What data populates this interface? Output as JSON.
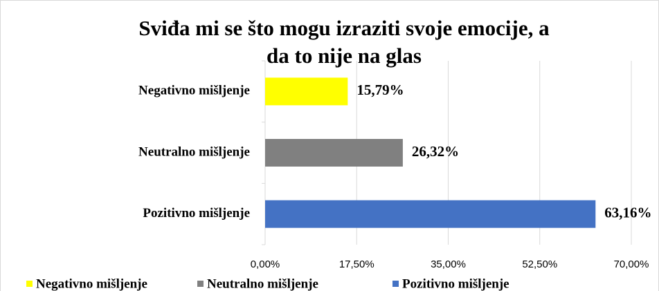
{
  "chart_data": {
    "type": "hbar",
    "title": [
      "Sviđa mi se što mogu izraziti svoje emocije, a",
      "da to nije na glas"
    ],
    "categories": [
      "Negativno mišljenje",
      "Neutralno mišljenje",
      "Pozitivno mišljenje"
    ],
    "values": [
      15.79,
      26.32,
      63.16
    ],
    "value_labels": [
      "15,79%",
      "26,32%",
      "63,16%"
    ],
    "colors": [
      "#ffff00",
      "#808080",
      "#4472c4"
    ],
    "xlim": [
      0,
      70
    ],
    "xticks": [
      {
        "value": 0,
        "label": "0,00%"
      },
      {
        "value": 17.5,
        "label": "17,50%"
      },
      {
        "value": 35,
        "label": "35,00%"
      },
      {
        "value": 52.5,
        "label": "52,50%"
      },
      {
        "value": 70,
        "label": "70,00%"
      }
    ],
    "grid": true,
    "legend": "bottom"
  }
}
